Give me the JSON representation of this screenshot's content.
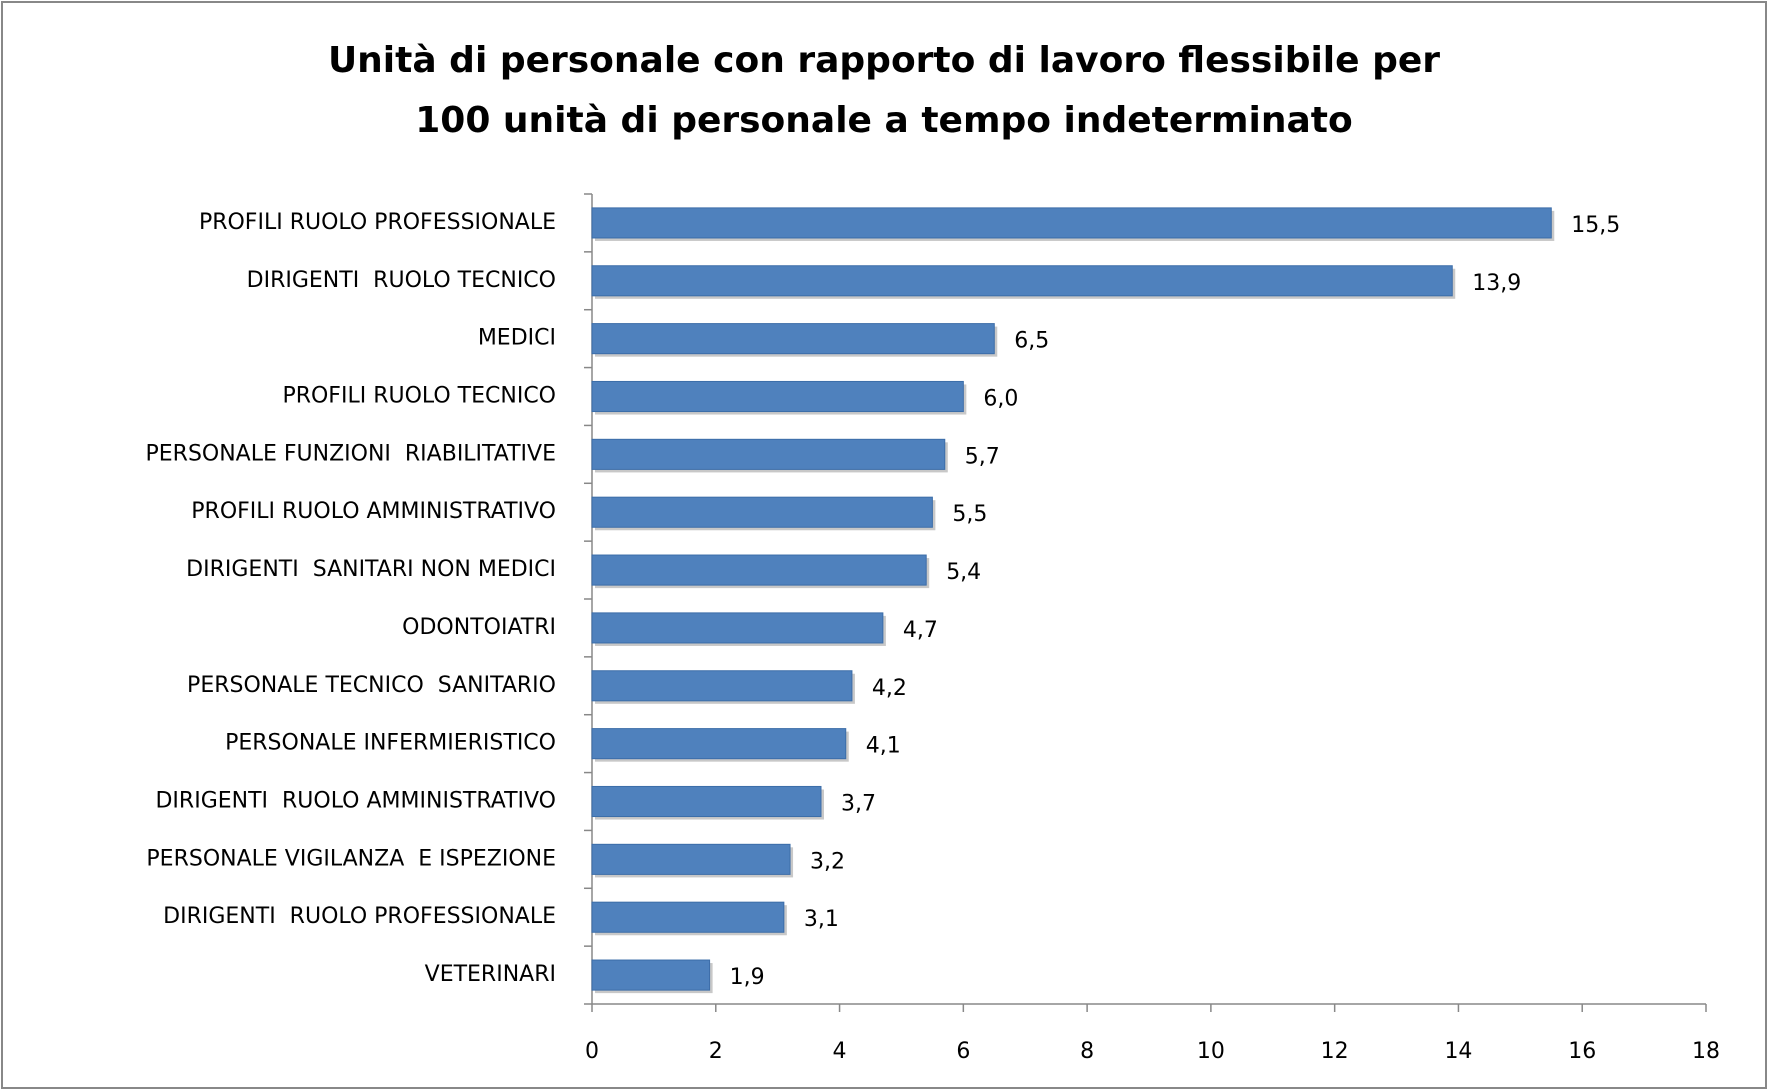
{
  "chart_data": {
    "type": "bar",
    "orientation": "horizontal",
    "title": [
      "Unità di personale con rapporto di lavoro flessibile per",
      "100 unità di personale a tempo indeterminato"
    ],
    "categories": [
      "PROFILI RUOLO PROFESSIONALE",
      "DIRIGENTI  RUOLO TECNICO",
      "MEDICI",
      "PROFILI RUOLO TECNICO",
      "PERSONALE FUNZIONI  RIABILITATIVE",
      "PROFILI RUOLO AMMINISTRATIVO",
      "DIRIGENTI  SANITARI NON MEDICI",
      "ODONTOIATRI",
      "PERSONALE TECNICO  SANITARIO",
      "PERSONALE INFERMIERISTICO",
      "DIRIGENTI  RUOLO AMMINISTRATIVO",
      "PERSONALE VIGILANZA  E ISPEZIONE",
      "DIRIGENTI  RUOLO PROFESSIONALE",
      "VETERINARI"
    ],
    "values": [
      15.5,
      13.9,
      6.5,
      6.0,
      5.7,
      5.5,
      5.4,
      4.7,
      4.2,
      4.1,
      3.7,
      3.2,
      3.1,
      1.9
    ],
    "value_labels": [
      "15,5",
      "13,9",
      "6,5",
      "6,0",
      "5,7",
      "5,5",
      "5,4",
      "4,7",
      "4,2",
      "4,1",
      "3,7",
      "3,2",
      "3,1",
      "1,9"
    ],
    "color": "#4f81bd",
    "xlim": [
      0,
      18
    ],
    "xticks": [
      0,
      2,
      4,
      6,
      8,
      10,
      12,
      14,
      16,
      18
    ],
    "grid": false
  }
}
